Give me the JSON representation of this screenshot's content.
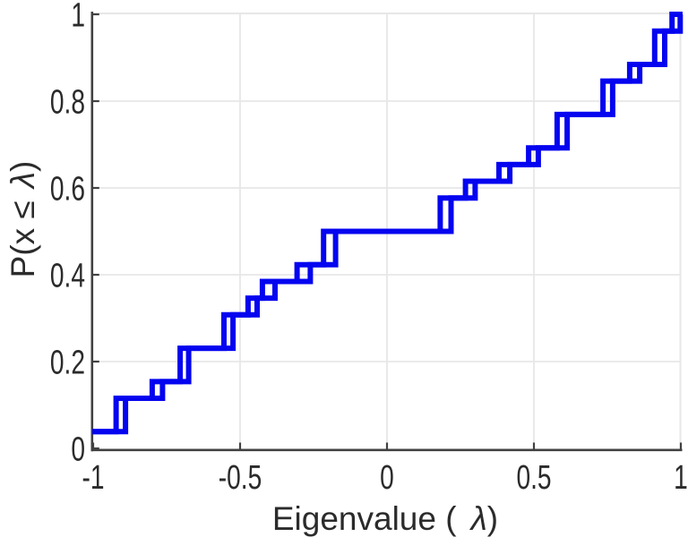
{
  "chart_data": {
    "type": "line",
    "subtype": "empirical_cdf_staircase",
    "title": "",
    "xlabel": "Eigenvalue ( λ)",
    "xlabel_parts": {
      "prefix": "Eigenvalue (",
      "lambda": "λ",
      "suffix": ")"
    },
    "ylabel": "P(x ≤ λ)",
    "ylabel_parts": {
      "prefix": "P(x ≤",
      "lambda": "λ",
      "suffix": ")"
    },
    "xlim": [
      -1,
      1
    ],
    "ylim": [
      0,
      1
    ],
    "grid": "on",
    "legend": "none",
    "x_ticks": {
      "values": [
        -1,
        -0.5,
        0,
        0.5,
        1
      ],
      "labels": [
        "-1",
        "-0.5",
        "0",
        "0.5",
        "1"
      ]
    },
    "y_ticks": {
      "values": [
        0,
        0.2,
        0.4,
        0.6,
        0.8,
        1
      ],
      "labels": [
        "0",
        "0.2",
        "0.4",
        "0.6",
        "0.8",
        "1"
      ]
    },
    "n_points": 26,
    "start_level": 0.03846,
    "jumps": [
      {
        "a": -0.922,
        "b": -0.89,
        "level": 0.11538
      },
      {
        "a": -0.799,
        "b": -0.764,
        "level": 0.15385
      },
      {
        "a": -0.704,
        "b": -0.675,
        "level": 0.23077
      },
      {
        "a": -0.555,
        "b": -0.524,
        "level": 0.30769
      },
      {
        "a": -0.473,
        "b": -0.442,
        "level": 0.34615
      },
      {
        "a": -0.424,
        "b": -0.381,
        "level": 0.38462
      },
      {
        "a": -0.306,
        "b": -0.261,
        "level": 0.42308
      },
      {
        "a": -0.216,
        "b": -0.175,
        "level": 0.5
      },
      {
        "a": 0.181,
        "b": 0.218,
        "level": 0.57692
      },
      {
        "a": 0.267,
        "b": 0.3,
        "level": 0.61538
      },
      {
        "a": 0.381,
        "b": 0.418,
        "level": 0.65385
      },
      {
        "a": 0.482,
        "b": 0.515,
        "level": 0.69231
      },
      {
        "a": 0.579,
        "b": 0.613,
        "level": 0.76923
      },
      {
        "a": 0.735,
        "b": 0.768,
        "level": 0.84615
      },
      {
        "a": 0.826,
        "b": 0.86,
        "level": 0.88462
      },
      {
        "a": 0.911,
        "b": 0.945,
        "level": 0.96154
      },
      {
        "a": 0.97,
        "b": 0.998,
        "level": 1.0
      }
    ],
    "eigenvalues": [
      -1.0,
      -0.922,
      -0.922,
      -0.799,
      -0.704,
      -0.704,
      -0.555,
      -0.555,
      -0.473,
      -0.424,
      -0.306,
      -0.216,
      -0.216,
      0.181,
      0.181,
      0.267,
      0.381,
      0.482,
      0.579,
      0.579,
      0.735,
      0.735,
      0.826,
      0.911,
      0.911,
      0.97
    ],
    "colors": {
      "line": "#0404F0",
      "grid": "#E7E7E7",
      "axis": "#414141",
      "text": "#2B2B2B"
    }
  }
}
